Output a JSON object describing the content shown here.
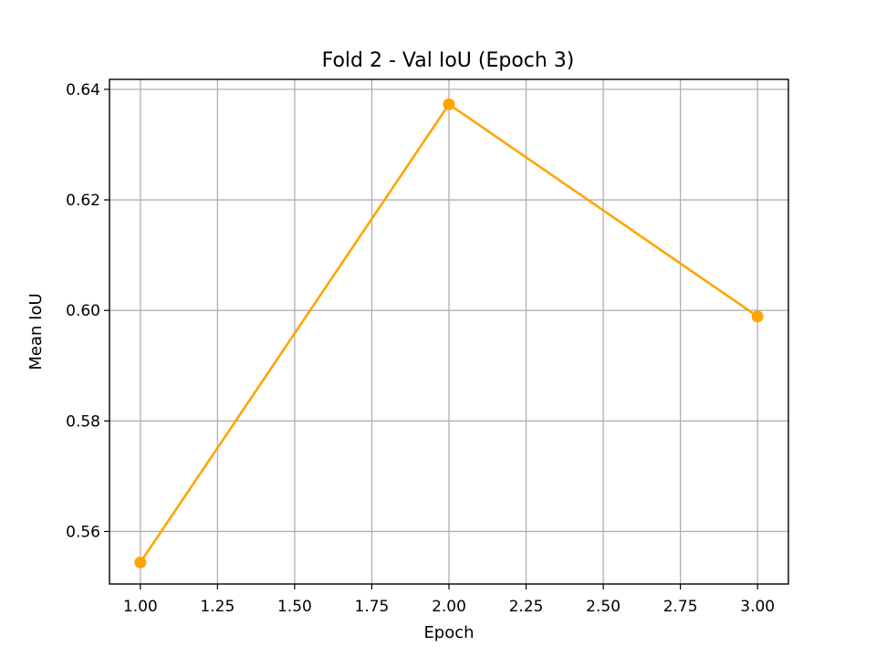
{
  "chart_data": {
    "type": "line",
    "title": "Fold 2 - Val IoU (Epoch 3)",
    "xlabel": "Epoch",
    "ylabel": "Mean IoU",
    "xlim": [
      0.9,
      3.1
    ],
    "ylim": [
      0.5505,
      0.6418
    ],
    "x_ticks": [
      1.0,
      1.25,
      1.5,
      1.75,
      2.0,
      2.25,
      2.5,
      2.75,
      3.0
    ],
    "x_tick_labels": [
      "1.00",
      "1.25",
      "1.50",
      "1.75",
      "2.00",
      "2.25",
      "2.50",
      "2.75",
      "3.00"
    ],
    "y_ticks": [
      0.56,
      0.58,
      0.6,
      0.62,
      0.64
    ],
    "y_tick_labels": [
      "0.56",
      "0.58",
      "0.60",
      "0.62",
      "0.64"
    ],
    "grid": true,
    "series": [
      {
        "x": [
          1,
          2,
          3
        ],
        "values": [
          0.5544,
          0.6373,
          0.5989
        ],
        "color": "#ffa500",
        "marker": "circle"
      }
    ]
  }
}
